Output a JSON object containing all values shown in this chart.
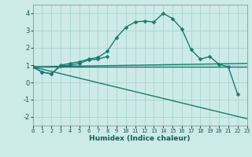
{
  "xlabel": "Humidex (Indice chaleur)",
  "ylabel": "",
  "bg_color": "#cceae8",
  "grid_color": "#aad4d0",
  "line_color": "#1a7a6e",
  "marker": "D",
  "markersize": 2.5,
  "linewidth": 1.0,
  "xlim": [
    0,
    23
  ],
  "ylim": [
    -2.5,
    4.5
  ],
  "xticks": [
    0,
    1,
    2,
    3,
    4,
    5,
    6,
    7,
    8,
    9,
    10,
    11,
    12,
    13,
    14,
    15,
    16,
    17,
    18,
    19,
    20,
    21,
    22,
    23
  ],
  "yticks": [
    -2,
    -1,
    0,
    1,
    2,
    3,
    4
  ],
  "series": [
    {
      "x": [
        0,
        1,
        2,
        3,
        4,
        5,
        6,
        7,
        8,
        9,
        10,
        11,
        12,
        13,
        14,
        15,
        16,
        17,
        18,
        19,
        20,
        21,
        22
      ],
      "y": [
        0.9,
        0.6,
        0.5,
        1.0,
        1.1,
        1.2,
        1.35,
        1.45,
        1.8,
        2.6,
        3.2,
        3.5,
        3.55,
        3.5,
        4.0,
        3.7,
        3.1,
        1.9,
        1.35,
        1.5,
        1.05,
        0.9,
        -0.7
      ],
      "has_marker": true
    },
    {
      "x": [
        0,
        1,
        2,
        3,
        4,
        5,
        6,
        7,
        8
      ],
      "y": [
        0.9,
        0.6,
        0.5,
        0.95,
        1.0,
        1.1,
        1.3,
        1.35,
        1.5
      ],
      "has_marker": true
    },
    {
      "x": [
        0,
        23
      ],
      "y": [
        0.9,
        1.1
      ],
      "has_marker": false
    },
    {
      "x": [
        0,
        23
      ],
      "y": [
        0.9,
        0.9
      ],
      "has_marker": false
    },
    {
      "x": [
        0,
        23
      ],
      "y": [
        0.9,
        -2.1
      ],
      "has_marker": false
    }
  ]
}
